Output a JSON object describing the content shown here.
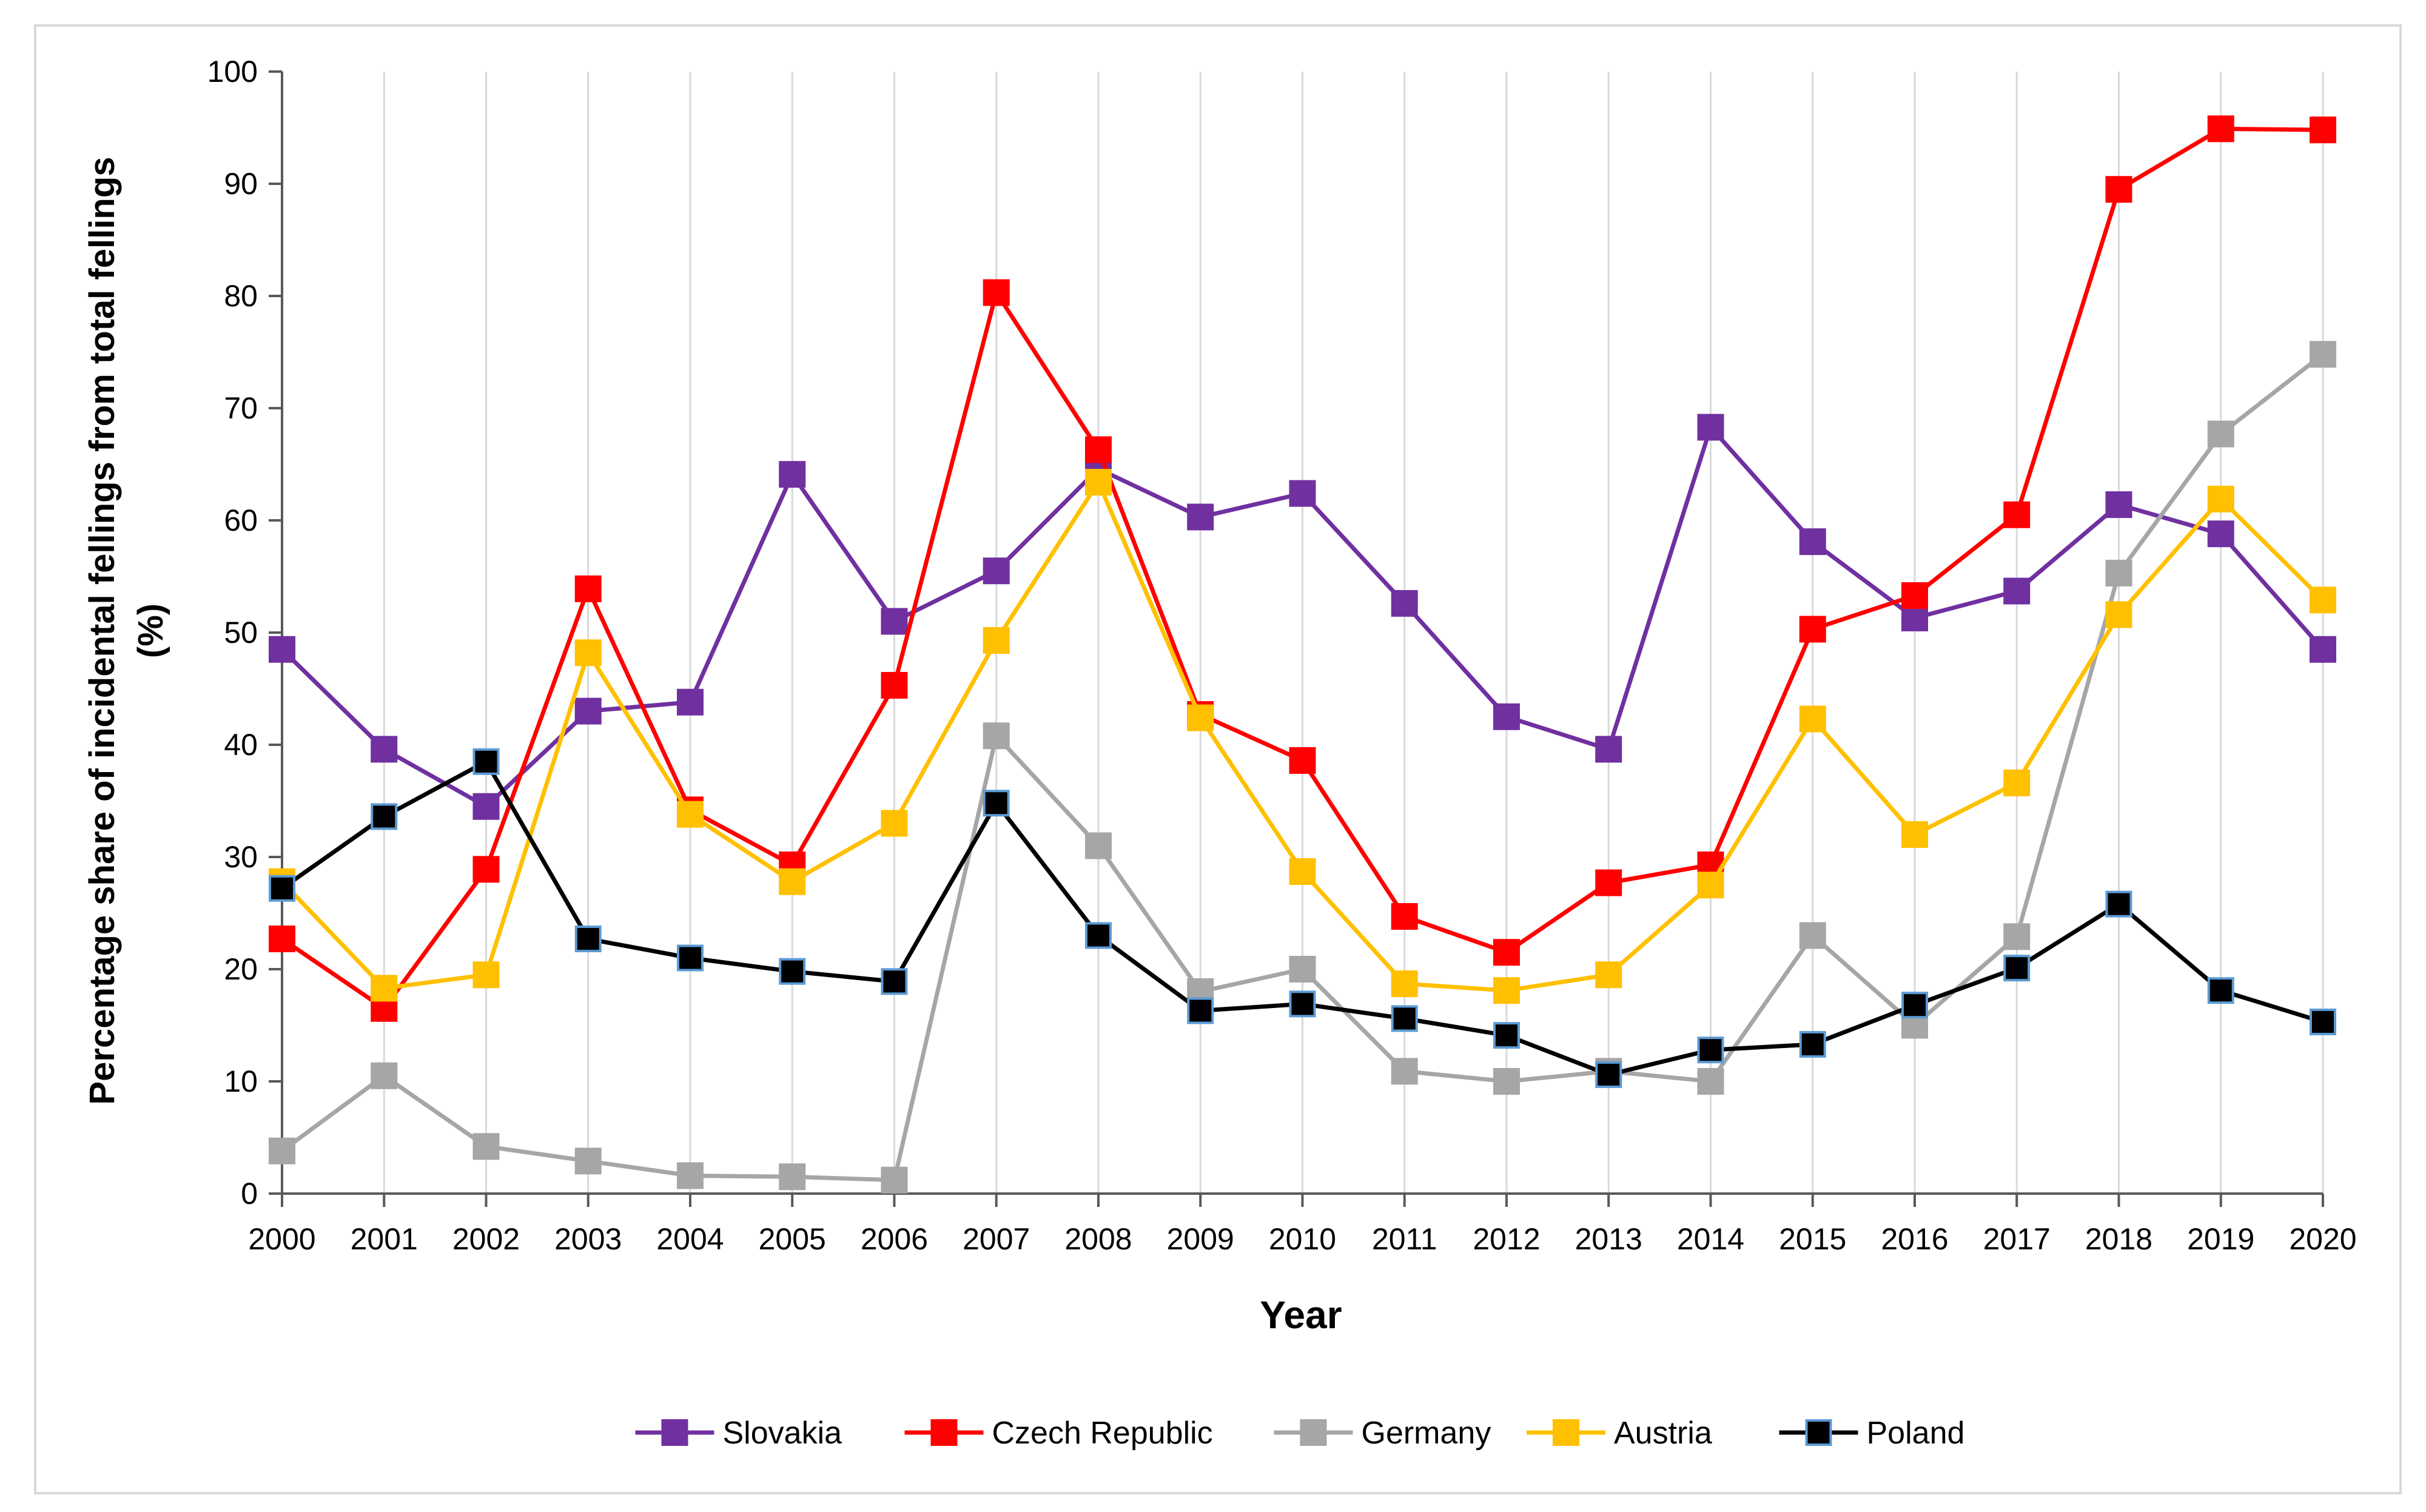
{
  "chart_data": {
    "type": "line",
    "title": "",
    "xlabel": "Year",
    "ylabel_line1": "Percentage share of incidental fellings from total fellings",
    "ylabel_line2": "(%)",
    "ylim": [
      0,
      100
    ],
    "ytick_step": 10,
    "grid": "vertical",
    "legend_position": "bottom",
    "categories": [
      "2000",
      "2001",
      "2002",
      "2003",
      "2004",
      "2005",
      "2006",
      "2007",
      "2008",
      "2009",
      "2010",
      "2011",
      "2012",
      "2013",
      "2014",
      "2015",
      "2016",
      "2017",
      "2018",
      "2019",
      "2020"
    ],
    "series": [
      {
        "name": "Slovakia",
        "color": "#7030A0",
        "marker_border": "#7030A0",
        "values": [
          48.5,
          39.6,
          34.5,
          43.0,
          43.8,
          64.1,
          51.0,
          55.5,
          64.6,
          60.3,
          62.4,
          52.6,
          42.5,
          39.6,
          68.3,
          58.1,
          51.3,
          53.7,
          61.4,
          58.8,
          48.5
        ]
      },
      {
        "name": "Czech Republic",
        "color": "#FF0000",
        "marker_border": "#FF0000",
        "values": [
          22.7,
          16.5,
          28.9,
          53.9,
          34.2,
          29.3,
          45.3,
          80.3,
          66.3,
          42.7,
          38.6,
          24.7,
          21.5,
          27.7,
          29.3,
          50.3,
          53.3,
          60.5,
          89.5,
          94.9,
          94.8
        ]
      },
      {
        "name": "Germany",
        "color": "#A6A6A6",
        "marker_border": "#A6A6A6",
        "values": [
          3.8,
          10.5,
          4.2,
          2.9,
          1.6,
          1.5,
          1.2,
          40.8,
          31.0,
          18.0,
          20.0,
          10.9,
          10.0,
          10.9,
          10.0,
          23.0,
          15.0,
          22.9,
          55.3,
          67.7,
          74.8
        ]
      },
      {
        "name": "Austria",
        "color": "#FFC000",
        "marker_border": "#FFC000",
        "values": [
          27.8,
          18.3,
          19.5,
          48.2,
          33.8,
          27.8,
          33.0,
          49.3,
          63.4,
          42.4,
          28.7,
          18.7,
          18.1,
          19.5,
          27.5,
          42.3,
          32.0,
          36.6,
          51.6,
          61.9,
          52.9
        ]
      },
      {
        "name": "Poland",
        "color": "#000000",
        "marker_border": "#5B9BD5",
        "values": [
          27.2,
          33.6,
          38.5,
          22.7,
          21.0,
          19.8,
          18.9,
          34.8,
          23.0,
          16.3,
          16.9,
          15.6,
          14.1,
          10.6,
          12.8,
          13.3,
          16.8,
          20.1,
          25.8,
          18.1,
          15.3
        ]
      }
    ]
  }
}
